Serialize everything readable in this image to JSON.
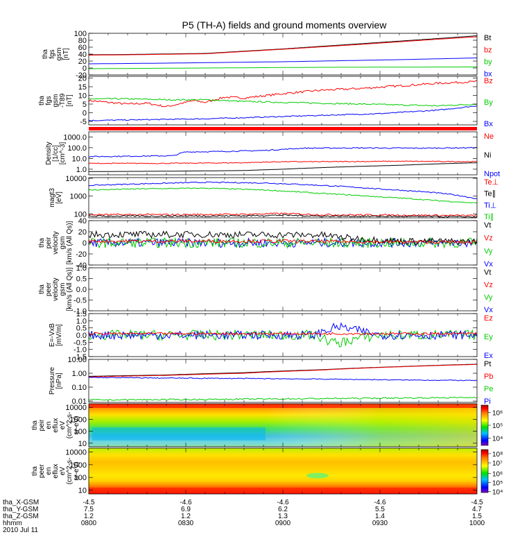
{
  "page": {
    "title": "P5 (TH-A) fields and ground moments overview"
  },
  "colors": {
    "black": "#000000",
    "red": "#ff0000",
    "green": "#00cc00",
    "blue": "#0000ff",
    "bar_red": "#ff0000"
  },
  "chart_data": [
    {
      "id": "fgs-gsm",
      "type": "line",
      "ylabel_lines": [
        "tha",
        "fgs",
        "gsm",
        "[nT]"
      ],
      "ylim": [
        -20,
        100
      ],
      "ticks": [
        {
          "v": -20,
          "t": "-20"
        },
        {
          "v": 0,
          "t": "0"
        },
        {
          "v": 20,
          "t": "20"
        },
        {
          "v": 40,
          "t": "40"
        },
        {
          "v": 60,
          "t": "60"
        },
        {
          "v": 80,
          "t": "80"
        },
        {
          "v": 100,
          "t": "100"
        }
      ],
      "legend": [
        {
          "text": "Bt",
          "color": "#000000"
        },
        {
          "text": "bz",
          "color": "#ff0000"
        },
        {
          "text": "by",
          "color": "#00cc00"
        },
        {
          "text": "bx",
          "color": "#0000ff"
        }
      ],
      "series": [
        {
          "color": "#000000",
          "x": [
            0,
            0.1,
            0.3,
            0.5,
            0.7,
            0.9,
            1
          ],
          "y": [
            38,
            39,
            42,
            55,
            70,
            85,
            93
          ]
        },
        {
          "color": "#ff0000",
          "x": [
            0,
            0.1,
            0.3,
            0.5,
            0.7,
            0.9,
            1
          ],
          "y": [
            37,
            38,
            41,
            54,
            68,
            83,
            90
          ]
        },
        {
          "color": "#0000ff",
          "x": [
            0,
            0.2,
            0.5,
            0.8,
            1
          ],
          "y": [
            12,
            14,
            18,
            24,
            29
          ]
        },
        {
          "color": "#00cc00",
          "x": [
            0,
            0.3,
            0.6,
            1
          ],
          "y": [
            -2,
            0,
            2,
            3
          ]
        }
      ]
    },
    {
      "id": "fgs-t89",
      "type": "line",
      "ylabel_lines": [
        "tha",
        "fgs",
        "gsm",
        "-T89",
        "[nT]"
      ],
      "ylim": [
        -7,
        21
      ],
      "ticks": [
        {
          "v": -5,
          "t": "-5"
        },
        {
          "v": 0,
          "t": "0"
        },
        {
          "v": 5,
          "t": "5"
        },
        {
          "v": 10,
          "t": "10"
        },
        {
          "v": 15,
          "t": "15"
        },
        {
          "v": 20,
          "t": "20"
        }
      ],
      "legend": [
        {
          "text": "Bz",
          "color": "#ff0000"
        },
        {
          "text": "By",
          "color": "#00cc00"
        },
        {
          "text": "Bx",
          "color": "#0000ff"
        }
      ],
      "series": [
        {
          "color": "#ff0000",
          "noise": 0.6,
          "x": [
            0,
            0.05,
            0.1,
            0.15,
            0.2,
            0.27,
            0.3,
            0.35,
            0.4,
            0.5,
            0.6,
            0.7,
            0.8,
            0.9,
            1
          ],
          "y": [
            7,
            6,
            5,
            5.5,
            3.5,
            7,
            6,
            9,
            8.5,
            11,
            13,
            14,
            15.5,
            17,
            18
          ]
        },
        {
          "color": "#00cc00",
          "noise": 0.4,
          "x": [
            0,
            0.1,
            0.2,
            0.3,
            0.4,
            0.5,
            0.6,
            0.7,
            0.8,
            0.9,
            1
          ],
          "y": [
            8,
            8,
            7.5,
            7.5,
            6.5,
            6,
            5.5,
            5,
            4.5,
            4,
            5
          ]
        },
        {
          "color": "#0000ff",
          "noise": 0.3,
          "x": [
            0,
            0.15,
            0.3,
            0.45,
            0.6,
            0.75,
            0.9,
            1
          ],
          "y": [
            -4.5,
            -4,
            -3.5,
            -2.5,
            -1.5,
            -0.5,
            1.5,
            4
          ]
        }
      ]
    },
    {
      "id": "density",
      "type": "line",
      "log": true,
      "ylabel_lines": [
        "Density",
        "[1/cc]",
        "[cm^-3]"
      ],
      "ylim": [
        0.3,
        3000
      ],
      "ticks": [
        {
          "v": 1,
          "t": "1.0"
        },
        {
          "v": 10,
          "t": "10.0"
        },
        {
          "v": 100,
          "t": "100.0"
        },
        {
          "v": 1000,
          "t": "1000.0"
        }
      ],
      "legend": [
        {
          "text": "Ne",
          "color": "#ff0000"
        },
        {
          "text": "Ni",
          "color": "#000000"
        },
        {
          "text": "Npot",
          "color": "#0000ff"
        }
      ],
      "series": [
        {
          "color": "#0000ff",
          "noise": 0.05,
          "x": [
            0,
            0.1,
            0.22,
            0.25,
            0.35,
            0.45,
            0.5,
            0.55,
            0.7,
            0.85,
            1
          ],
          "y": [
            15,
            16,
            18,
            40,
            45,
            55,
            70,
            90,
            95,
            90,
            100
          ]
        },
        {
          "color": "#ff0000",
          "noise": 0.04,
          "x": [
            0,
            0.2,
            0.4,
            0.5,
            0.6,
            0.8,
            1
          ],
          "y": [
            3.5,
            3.5,
            4,
            5,
            5,
            5.5,
            5
          ]
        },
        {
          "color": "#000000",
          "x": [
            0,
            0.2,
            0.4,
            0.5,
            0.6,
            0.8,
            1
          ],
          "y": [
            0.6,
            0.65,
            0.75,
            1.0,
            1.4,
            2.3,
            4
          ]
        }
      ]
    },
    {
      "id": "temperature",
      "type": "line",
      "log": true,
      "ylabel_lines": [
        "magt3",
        "[eV]"
      ],
      "ylim": [
        60,
        11000
      ],
      "ticks": [
        {
          "v": 100,
          "t": "100"
        },
        {
          "v": 1000,
          "t": "1000"
        },
        {
          "v": 10000,
          "t": "10000"
        }
      ],
      "legend": [
        {
          "text": "Te⊥",
          "color": "#ff0000"
        },
        {
          "text": "Te∥",
          "color": "#000000"
        },
        {
          "text": "Ti⊥",
          "color": "#0000ff"
        },
        {
          "text": "Ti∥",
          "color": "#00cc00"
        }
      ],
      "series": [
        {
          "color": "#0000ff",
          "noise": 0.03,
          "x": [
            0,
            0.15,
            0.3,
            0.45,
            0.6,
            0.75,
            0.9,
            1
          ],
          "y": [
            4000,
            5000,
            6000,
            5500,
            4000,
            2500,
            1500,
            700
          ]
        },
        {
          "color": "#00cc00",
          "noise": 0.03,
          "x": [
            0,
            0.15,
            0.3,
            0.45,
            0.6,
            0.75,
            0.9,
            1
          ],
          "y": [
            2200,
            2600,
            2800,
            2200,
            1400,
            900,
            550,
            400
          ]
        },
        {
          "color": "#ff0000",
          "noise": 0.05,
          "x": [
            0,
            0.2,
            0.4,
            0.5,
            0.6,
            0.8,
            1
          ],
          "y": [
            90,
            90,
            95,
            105,
            90,
            85,
            80
          ]
        },
        {
          "color": "#000000",
          "noise": 0.04,
          "x": [
            0,
            0.2,
            0.4,
            0.5,
            0.6,
            0.8,
            1
          ],
          "y": [
            75,
            75,
            78,
            85,
            75,
            72,
            68
          ]
        }
      ]
    },
    {
      "id": "peir-velocity",
      "type": "line",
      "ylabel_lines": [
        "tha",
        "peir",
        "velocity",
        "gsm",
        "[km/s (All Qs)]"
      ],
      "ylim": [
        -40,
        40
      ],
      "ticks": [
        {
          "v": -40,
          "t": "-40"
        },
        {
          "v": -20,
          "t": "-20"
        },
        {
          "v": 0,
          "t": "0"
        },
        {
          "v": 20,
          "t": "20"
        },
        {
          "v": 40,
          "t": "40"
        }
      ],
      "legend": [
        {
          "text": "Vt",
          "color": "#000000"
        },
        {
          "text": "Vz",
          "color": "#ff0000"
        },
        {
          "text": "Vy",
          "color": "#00cc00"
        },
        {
          "text": "Vx",
          "color": "#0000ff"
        }
      ],
      "series": [
        {
          "color": "#0000ff",
          "noise": 8,
          "x": [
            0,
            0.6,
            0.7,
            1
          ],
          "y": [
            0,
            0,
            0,
            0
          ]
        },
        {
          "color": "#00cc00",
          "noise": 9,
          "x": [
            0,
            0.6,
            0.7,
            1
          ],
          "y": [
            0,
            0,
            0,
            0
          ]
        },
        {
          "color": "#000000",
          "noise": 6,
          "x": [
            0,
            0.3,
            0.6,
            0.68,
            0.8,
            1
          ],
          "y": [
            15,
            15,
            14,
            8,
            3,
            2
          ]
        },
        {
          "color": "#ff0000",
          "noise": 3,
          "x": [
            0,
            0.5,
            0.68,
            1
          ],
          "y": [
            3,
            3,
            2,
            1
          ]
        }
      ]
    },
    {
      "id": "peer-velocity",
      "type": "line",
      "ylabel_lines": [
        "tha",
        "peer",
        "velocity",
        "gsm",
        "[km/s (All Qs)]"
      ],
      "ylim": [
        -1,
        1
      ],
      "ticks": [
        {
          "v": -1.0,
          "t": "-1.0"
        },
        {
          "v": -0.5,
          "t": "-0.5"
        },
        {
          "v": 0,
          "t": "0.0"
        },
        {
          "v": 0.5,
          "t": "0.5"
        },
        {
          "v": 1.0,
          "t": "1.0"
        }
      ],
      "legend": [
        {
          "text": "Vt",
          "color": "#000000"
        },
        {
          "text": "Vz",
          "color": "#ff0000"
        },
        {
          "text": "Vy",
          "color": "#00cc00"
        },
        {
          "text": "Vx",
          "color": "#0000ff"
        }
      ],
      "series": []
    },
    {
      "id": "e-field",
      "type": "line",
      "ylabel_lines": [
        "E=-VxB",
        "[mV/m]"
      ],
      "ylim": [
        -1.5,
        1.5
      ],
      "ticks": [
        {
          "v": -1.5,
          "t": "-1.5"
        },
        {
          "v": -1.0,
          "t": "-1.0"
        },
        {
          "v": -0.5,
          "t": "-0.5"
        },
        {
          "v": 0,
          "t": "0.0"
        },
        {
          "v": 0.5,
          "t": "0.5"
        },
        {
          "v": 1.0,
          "t": "1.0"
        },
        {
          "v": 1.5,
          "t": "1.5"
        }
      ],
      "legend": [
        {
          "text": "Ez",
          "color": "#ff0000"
        },
        {
          "text": "Ey",
          "color": "#00cc00"
        },
        {
          "text": "Ex",
          "color": "#0000ff"
        }
      ],
      "series": [
        {
          "color": "#00cc00",
          "noise": 0.35,
          "x": [
            0,
            0.58,
            0.64,
            0.68,
            0.75,
            1
          ],
          "y": [
            0,
            0,
            -0.6,
            -0.3,
            0,
            0
          ]
        },
        {
          "color": "#0000ff",
          "noise": 0.3,
          "x": [
            0,
            0.58,
            0.64,
            0.68,
            0.75,
            1
          ],
          "y": [
            0,
            0,
            0.6,
            0.4,
            0,
            0
          ]
        },
        {
          "color": "#ff0000",
          "noise": 0.08,
          "x": [
            0,
            0.5,
            1
          ],
          "y": [
            0.1,
            0.1,
            0.1
          ]
        }
      ]
    },
    {
      "id": "pressure",
      "type": "line",
      "log": true,
      "ylabel_lines": [
        "Pressure",
        "[nPa]"
      ],
      "ylim": [
        0.008,
        10
      ],
      "ticks": [
        {
          "v": 0.01,
          "t": "0.01"
        },
        {
          "v": 0.1,
          "t": "0.10"
        },
        {
          "v": 1,
          "t": "1.00"
        },
        {
          "v": 10,
          "t": "10.00"
        }
      ],
      "legend": [
        {
          "text": "Pt",
          "color": "#000000"
        },
        {
          "text": "Pb",
          "color": "#ff0000"
        },
        {
          "text": "Pe",
          "color": "#00cc00"
        },
        {
          "text": "Pi",
          "color": "#0000ff"
        }
      ],
      "series": [
        {
          "color": "#000000",
          "x": [
            0,
            0.2,
            0.4,
            0.6,
            0.8,
            1
          ],
          "y": [
            0.6,
            0.75,
            1.1,
            1.8,
            3.0,
            4.5
          ]
        },
        {
          "color": "#ff0000",
          "x": [
            0,
            0.2,
            0.4,
            0.6,
            0.8,
            1
          ],
          "y": [
            0.55,
            0.7,
            1.0,
            1.7,
            2.9,
            4.3
          ]
        },
        {
          "color": "#0000ff",
          "noise": 0.03,
          "x": [
            0,
            0.2,
            0.4,
            0.6,
            0.8,
            1
          ],
          "y": [
            0.5,
            0.45,
            0.42,
            0.38,
            0.33,
            0.3
          ]
        },
        {
          "color": "#00cc00",
          "noise": 0.05,
          "x": [
            0,
            0.3,
            0.6,
            1
          ],
          "y": [
            0.012,
            0.013,
            0.015,
            0.018
          ]
        }
      ]
    },
    {
      "id": "peir-eflux",
      "type": "heatmap",
      "log": true,
      "ylabel_lines": [
        "tha",
        "peir",
        "en",
        "eflux",
        "eV",
        "(cm^2-s-",
        "sr-eV)"
      ],
      "ylim": [
        5,
        20000
      ],
      "ticks": [
        {
          "v": 10,
          "t": "10"
        },
        {
          "v": 100,
          "t": "100"
        },
        {
          "v": 1000,
          "t": "1000"
        },
        {
          "v": 10000,
          "t": "10000"
        }
      ],
      "colorbar_ticks": [
        {
          "v": 0.2,
          "t": "10⁴"
        },
        {
          "v": 0.5,
          "t": "10⁵"
        },
        {
          "v": 0.8,
          "t": "10⁶"
        }
      ]
    },
    {
      "id": "peer-eflux",
      "type": "heatmap",
      "log": true,
      "ylabel_lines": [
        "tha",
        "peer",
        "en",
        "eflux",
        "eV",
        "(cm^2-s-",
        "sr-eV)"
      ],
      "ylim": [
        5,
        20000
      ],
      "ticks": [
        {
          "v": 10,
          "t": "10"
        },
        {
          "v": 100,
          "t": "100"
        },
        {
          "v": 1000,
          "t": "1000"
        },
        {
          "v": 10000,
          "t": "10000"
        }
      ],
      "colorbar_ticks": [
        {
          "v": 0.05,
          "t": "10⁴"
        },
        {
          "v": 0.25,
          "t": "10⁵"
        },
        {
          "v": 0.45,
          "t": "10⁶"
        },
        {
          "v": 0.68,
          "t": "10⁷"
        },
        {
          "v": 0.88,
          "t": "10⁸"
        }
      ]
    }
  ],
  "x_axis": {
    "rows": [
      {
        "label": "tha_X-GSM",
        "values": [
          "-4.5",
          "-4.6",
          "-4.6",
          "-4.6",
          "-4.5"
        ]
      },
      {
        "label": "tha_Y-GSM",
        "values": [
          "7.5",
          "6.9",
          "6.2",
          "5.5",
          "4.7"
        ]
      },
      {
        "label": "tha_Z-GSM",
        "values": [
          "1.2",
          "1.2",
          "1.3",
          "1.4",
          "1.5"
        ]
      },
      {
        "label": "hhmm",
        "values": [
          "0800",
          "0830",
          "0900",
          "0930",
          "1000"
        ]
      }
    ],
    "date": "2010 Jul 11"
  }
}
